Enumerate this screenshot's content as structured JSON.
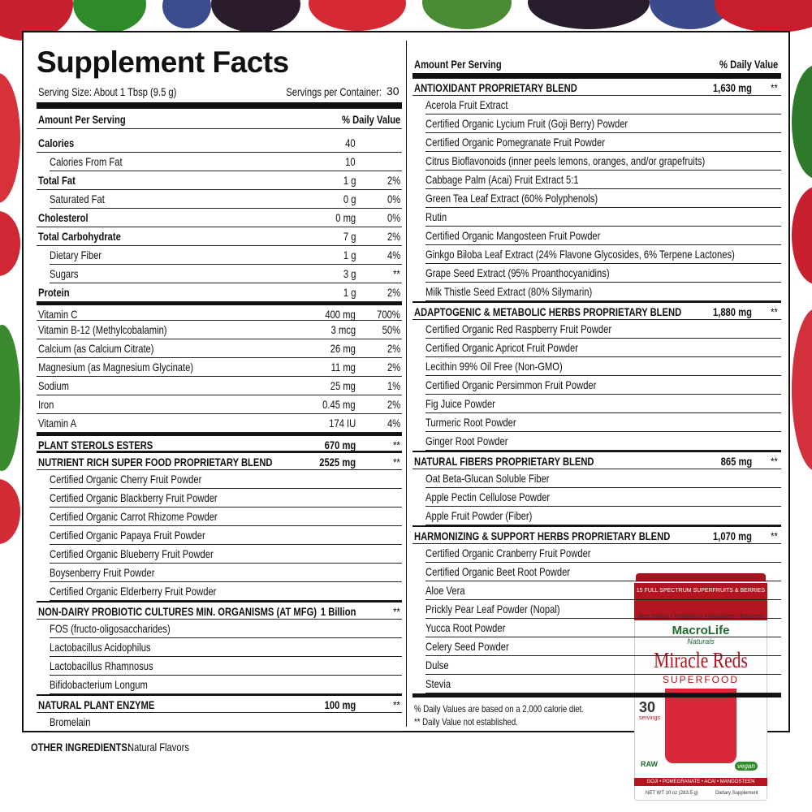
{
  "title": "Supplement Facts",
  "serving_size": "Serving Size:  About 1 Tbsp (9.5 g)",
  "servings_label": "Servings per Container:",
  "servings": 30,
  "left": {
    "header": {
      "amount": "Amount Per Serving",
      "dv": "% Daily Value"
    },
    "nutrients": [
      {
        "name": "Calories",
        "amount": 40,
        "sub": [
          {
            "name": "Calories From Fat",
            "amount": 10
          }
        ]
      },
      {
        "name": "Total Fat",
        "amount": "1 g",
        "dv": "2%",
        "sub": [
          {
            "name": "Saturated Fat",
            "amount": "0 g",
            "dv": "0%"
          }
        ]
      },
      {
        "name": "Cholesterol",
        "amount": "0 mg",
        "dv": "0%",
        "sub": []
      },
      {
        "name": "Total Carbohydrate",
        "amount": "7 g",
        "dv": "2%",
        "sub": [
          {
            "name": "Dietary Fiber",
            "amount": "1 g",
            "dv": "4%"
          },
          {
            "name": "Sugars",
            "amount": "3 g",
            "dv": "**"
          }
        ]
      },
      {
        "name": "Protein",
        "amount": "1 g",
        "dv": "2%",
        "sub": []
      }
    ],
    "vitamins": [
      {
        "name": "Vitamin C",
        "amount": "400 mg",
        "dv": "700%"
      },
      {
        "name": "Vitamin B-12 (Methylcobalamin)",
        "amount": "3 mcg",
        "dv": "50%"
      },
      {
        "name": "Calcium (as Calcium Citrate)",
        "amount": "26 mg",
        "dv": "2%"
      },
      {
        "name": "Magnesium (as Magnesium Glycinate)",
        "amount": "11 mg",
        "dv": "2%"
      },
      {
        "name": "Sodium",
        "amount": "25 mg",
        "dv": "1%"
      },
      {
        "name": "Iron",
        "amount": "0.45 mg",
        "dv": "2%"
      },
      {
        "name": "Vitamin A",
        "amount": "174 IU",
        "dv": "4%"
      }
    ],
    "blends": [
      {
        "name": "PLANT STEROLS ESTERS",
        "amount": "670 mg",
        "dv": "**",
        "items": []
      },
      {
        "name": "NUTRIENT RICH SUPER FOOD PROPRIETARY BLEND",
        "amount": "2525 mg",
        "dv": "**",
        "items": [
          "Certified Organic Cherry Fruit Powder",
          "Certified Organic Blackberry Fruit Powder",
          "Certified Organic Carrot Rhizome Powder",
          "Certified Organic Papaya Fruit Powder",
          "Certified Organic Blueberry Fruit Powder",
          "Boysenberry Fruit Powder",
          "Certified Organic Elderberry Fruit Powder"
        ]
      },
      {
        "name": "NON-DAIRY PROBIOTIC CULTURES MIN. ORGANISMS (AT MFG)",
        "amount": "1 Billion",
        "dv": "**",
        "items": [
          "FOS (fructo-oligosaccharides)",
          "Lactobacillus Acidophilus",
          "Lactobacillus Rhamnosus",
          "Bifidobacterium Longum"
        ]
      },
      {
        "name": "NATURAL PLANT ENZYME",
        "amount": "100 mg",
        "dv": "**",
        "items": [
          "Bromelain"
        ]
      }
    ]
  },
  "right": {
    "header": {
      "amount": "Amount Per Serving",
      "dv": "% Daily Value"
    },
    "blends": [
      {
        "name": "ANTIOXIDANT PROPRIETARY BLEND",
        "amount": "1,630 mg",
        "dv": "**",
        "items": [
          "Acerola Fruit Extract",
          "Certified Organic Lycium Fruit (Goji Berry) Powder",
          "Certified Organic Pomegranate Fruit Powder",
          "Citrus Bioflavonoids (inner peels lemons, oranges, and/or grapefruits)",
          "Cabbage Palm (Acai) Fruit Extract 5:1",
          "Green Tea Leaf Extract (60% Polyphenols)",
          "Rutin",
          "Certified Organic Mangosteen Fruit Powder",
          "Ginkgo Biloba Leaf Extract (24% Flavone Glycosides, 6% Terpene Lactones)",
          "Grape Seed Extract (95% Proanthocyanidins)",
          "Milk Thistle Seed Extract (80% Silymarin)"
        ]
      },
      {
        "name": "ADAPTOGENIC & METABOLIC HERBS PROPRIETARY BLEND",
        "amount": "1,880 mg",
        "dv": "**",
        "items": [
          "Certified Organic Red Raspberry Fruit Powder",
          "Certified Organic Apricot Fruit Powder",
          "Lecithin 99% Oil Free (Non-GMO)",
          "Certified Organic Persimmon Fruit Powder",
          "Fig Juice Powder",
          "Turmeric Root Powder",
          "Ginger Root Powder"
        ]
      },
      {
        "name": "NATURAL FIBERS PROPRIETARY BLEND",
        "amount": "865 mg",
        "dv": "**",
        "items": [
          "Oat Beta-Glucan Soluble Fiber",
          "Apple Pectin Cellulose Powder",
          "Apple Fruit Powder (Fiber)"
        ]
      },
      {
        "name": "HARMONIZING & SUPPORT HERBS PROPRIETARY BLEND",
        "amount": "1,070 mg",
        "dv": "**",
        "items": [
          "Certified Organic Cranberry Fruit Powder",
          "Certified Organic Beet Root Powder",
          "Aloe Vera",
          "Prickly Pear Leaf Powder (Nopal)",
          "Yucca Root Powder",
          "Celery Seed Powder",
          "Dulse",
          "Stevia"
        ]
      }
    ],
    "footnotes": [
      "% Daily Values are based on a 2,000 calorie diet.",
      "** Daily Value not established."
    ]
  },
  "other_ingredients": {
    "label": "OTHER INGREDIENTS:",
    "value": "Natural Flavors"
  },
  "product": {
    "tagline": "15 FULL SPECTRUM SUPERFRUITS & BERRIES",
    "claims": "Best Tasting • Probiotics • Antioxidants • Enzymes",
    "brand": "MacroLife",
    "brand_sub": "Naturals",
    "name": "Miracle Reds",
    "subtitle": "SUPERFOOD",
    "servings_count": 30,
    "servings_label": "servings",
    "badges": [
      "RAW",
      "vegan"
    ],
    "fruits": "GOJI • POMEGRANATE • ACAI • MANGOSTEEN",
    "net_wt": "NET WT 10 oz (283.5 g)",
    "label": "Dietary Supplement"
  }
}
